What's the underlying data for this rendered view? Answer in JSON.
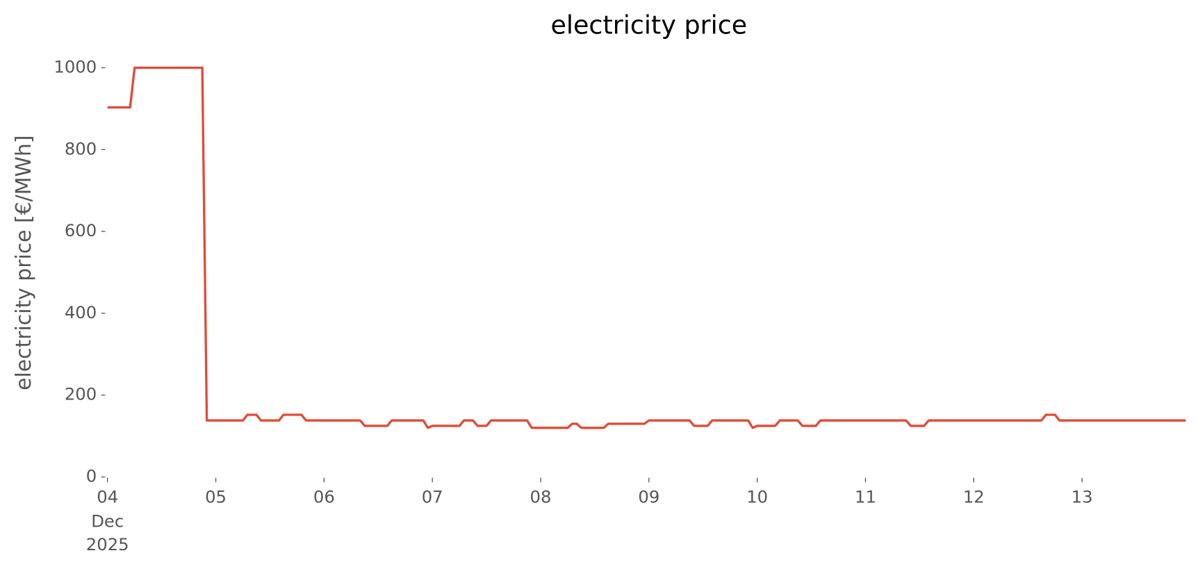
{
  "chart_data": {
    "type": "line",
    "title": "electricity price",
    "ylabel": "electricity price [€/MWh]",
    "x": [
      "2025-12-04T00:00",
      "2025-12-04T05:00",
      "2025-12-04T06:00",
      "2025-12-04T21:00",
      "2025-12-04T22:00",
      "2025-12-05T06:00",
      "2025-12-05T07:00",
      "2025-12-05T09:00",
      "2025-12-05T10:00",
      "2025-12-05T14:00",
      "2025-12-05T15:00",
      "2025-12-05T19:00",
      "2025-12-05T20:00",
      "2025-12-06T08:00",
      "2025-12-06T09:00",
      "2025-12-06T14:00",
      "2025-12-06T15:00",
      "2025-12-06T22:00",
      "2025-12-06T23:00",
      "2025-12-07T00:00",
      "2025-12-07T06:00",
      "2025-12-07T07:00",
      "2025-12-07T09:00",
      "2025-12-07T10:00",
      "2025-12-07T12:00",
      "2025-12-07T13:00",
      "2025-12-07T21:00",
      "2025-12-07T22:00",
      "2025-12-08T06:00",
      "2025-12-08T07:00",
      "2025-12-08T08:00",
      "2025-12-08T09:00",
      "2025-12-08T14:00",
      "2025-12-08T15:00",
      "2025-12-08T23:00",
      "2025-12-09T00:00",
      "2025-12-09T09:00",
      "2025-12-09T10:00",
      "2025-12-09T13:00",
      "2025-12-09T14:00",
      "2025-12-09T22:00",
      "2025-12-09T23:00",
      "2025-12-10T00:00",
      "2025-12-10T04:00",
      "2025-12-10T05:00",
      "2025-12-10T09:00",
      "2025-12-10T10:00",
      "2025-12-10T13:00",
      "2025-12-10T14:00",
      "2025-12-11T09:00",
      "2025-12-11T10:00",
      "2025-12-11T13:00",
      "2025-12-11T14:00",
      "2025-12-12T15:00",
      "2025-12-12T16:00",
      "2025-12-12T18:00",
      "2025-12-12T19:00",
      "2025-12-13T23:00"
    ],
    "series": [
      {
        "name": "electricity price",
        "color": "#e24a33",
        "values": [
          903,
          903,
          1000,
          1000,
          138,
          138,
          152,
          152,
          138,
          138,
          152,
          152,
          138,
          138,
          125,
          125,
          138,
          138,
          120,
          125,
          125,
          138,
          138,
          125,
          125,
          138,
          138,
          120,
          120,
          130,
          130,
          120,
          120,
          130,
          130,
          138,
          138,
          125,
          125,
          138,
          138,
          120,
          125,
          125,
          138,
          138,
          125,
          125,
          138,
          138,
          125,
          125,
          138,
          138,
          152,
          152,
          138,
          138
        ]
      }
    ],
    "xlim": [
      "2025-12-04T00:00",
      "2025-12-14T00:00"
    ],
    "xticks": [
      {
        "value": "2025-12-04",
        "label": "04"
      },
      {
        "value": "2025-12-05",
        "label": "05"
      },
      {
        "value": "2025-12-06",
        "label": "06"
      },
      {
        "value": "2025-12-07",
        "label": "07"
      },
      {
        "value": "2025-12-08",
        "label": "08"
      },
      {
        "value": "2025-12-09",
        "label": "09"
      },
      {
        "value": "2025-12-10",
        "label": "10"
      },
      {
        "value": "2025-12-11",
        "label": "11"
      },
      {
        "value": "2025-12-12",
        "label": "12"
      },
      {
        "value": "2025-12-13",
        "label": "13"
      }
    ],
    "x_date_offset": [
      "Dec",
      "2025"
    ],
    "ylim": [
      0,
      1000
    ],
    "yticks": [
      0,
      200,
      400,
      600,
      800,
      1000
    ],
    "grid": false
  }
}
